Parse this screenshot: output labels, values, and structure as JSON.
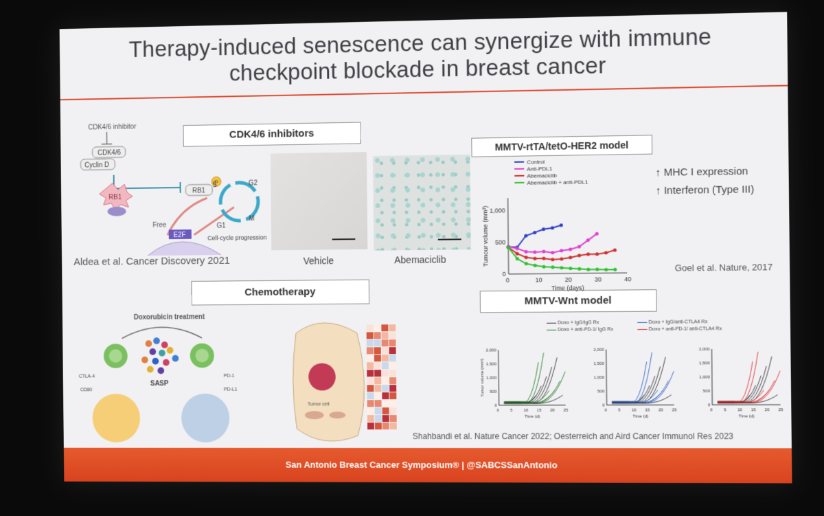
{
  "slide": {
    "title_line1": "Therapy-induced senescence can synergize with immune",
    "title_line2": "checkpoint blockade in breast cancer",
    "section_cdk": "CDK4/6 inhibitors",
    "section_chemo": "Chemotherapy",
    "section_her2": "MMTV-rtTA/tetO-HER2 model",
    "section_wnt": "MMTV-Wnt model",
    "ref_aldea": "Aldea et al. Cancer Discovery 2021",
    "ref_goel": "Goel et al. Nature, 2017",
    "ref_shahbandi": "Shahbandi et al. Nature Cancer 2022; Oesterreich and Aird Cancer Immunol Res 2023",
    "caption_vehicle": "Vehicle",
    "caption_abemaciclib": "Abemaciclib",
    "bullet_mhc": "MHC I expression",
    "bullet_ifn": "Interferon (Type III)",
    "footer_text": "San Antonio Breast Cancer Symposium®  |  @SABCSSanAntonio"
  },
  "cdk_diagram": {
    "inhibitor": "CDK4/6 inhibitor",
    "cdk": "CDK4/6",
    "cyclin": "Cyclin D",
    "rb1": "RB1",
    "rb1b": "RB1",
    "p": "P",
    "free": "Free",
    "e2f": "E2F",
    "cycle_label": "Cell-cycle progression",
    "s": "S",
    "g2": "G2",
    "g1": "G1",
    "m": "M"
  },
  "chemo_diagram": {
    "treatment": "Doxorubicin treatment",
    "sasp": "SASP",
    "ctla4": "CTLA-4",
    "cd80": "CD80",
    "pd1": "PD-1",
    "pdl1": "PD-L1",
    "tumor_cell": "Tumor cell"
  },
  "chart_data": [
    {
      "type": "line",
      "xlabel": "Time (days)",
      "ylabel": "Tumour volume (mm³)",
      "xlim": [
        0,
        40
      ],
      "ylim": [
        0,
        1200
      ],
      "xticks": [
        0,
        10,
        20,
        30,
        40
      ],
      "yticks": [
        "0",
        "500",
        "1,000"
      ],
      "series": [
        {
          "name": "Control",
          "color": "#3040c8",
          "x": [
            0,
            3,
            6,
            9,
            12,
            15,
            18
          ],
          "y": [
            430,
            420,
            600,
            650,
            700,
            720,
            760
          ]
        },
        {
          "name": "Anti-PDL1",
          "color": "#e040d0",
          "x": [
            0,
            3,
            6,
            9,
            12,
            15,
            18,
            21,
            24,
            27,
            30
          ],
          "y": [
            430,
            400,
            350,
            340,
            350,
            330,
            360,
            380,
            420,
            520,
            620
          ]
        },
        {
          "name": "Abemaciclib",
          "color": "#d03030",
          "x": [
            0,
            3,
            6,
            9,
            12,
            15,
            18,
            21,
            24,
            27,
            30,
            33,
            36
          ],
          "y": [
            420,
            320,
            260,
            240,
            240,
            220,
            230,
            250,
            280,
            300,
            300,
            320,
            360
          ]
        },
        {
          "name": "Abemaciclib + anti-PDL1",
          "color": "#30c030",
          "x": [
            0,
            3,
            6,
            9,
            12,
            15,
            18,
            21,
            24,
            27,
            30,
            33,
            36
          ],
          "y": [
            420,
            240,
            160,
            130,
            110,
            100,
            90,
            80,
            70,
            60,
            60,
            55,
            55
          ]
        }
      ]
    },
    {
      "type": "line",
      "xlabel": "Time (d)",
      "ylabel": "Tumor volume (mm³)",
      "xlim": [
        0,
        25
      ],
      "ylim": [
        0,
        2000
      ],
      "xticks": [
        0,
        5,
        10,
        15,
        20,
        25
      ],
      "yticks": [
        "0",
        "500",
        "1,000",
        "1,500",
        "2,000"
      ],
      "legend": [
        "Doxo + IgG/IgG Rx",
        "Doxo + anti-PD-1/ IgG Rx",
        "Doxo + IgG/anti-CTLA4 Rx",
        "Doxo + anti-PD-1/ anti-CTLA4 Rx"
      ]
    }
  ]
}
